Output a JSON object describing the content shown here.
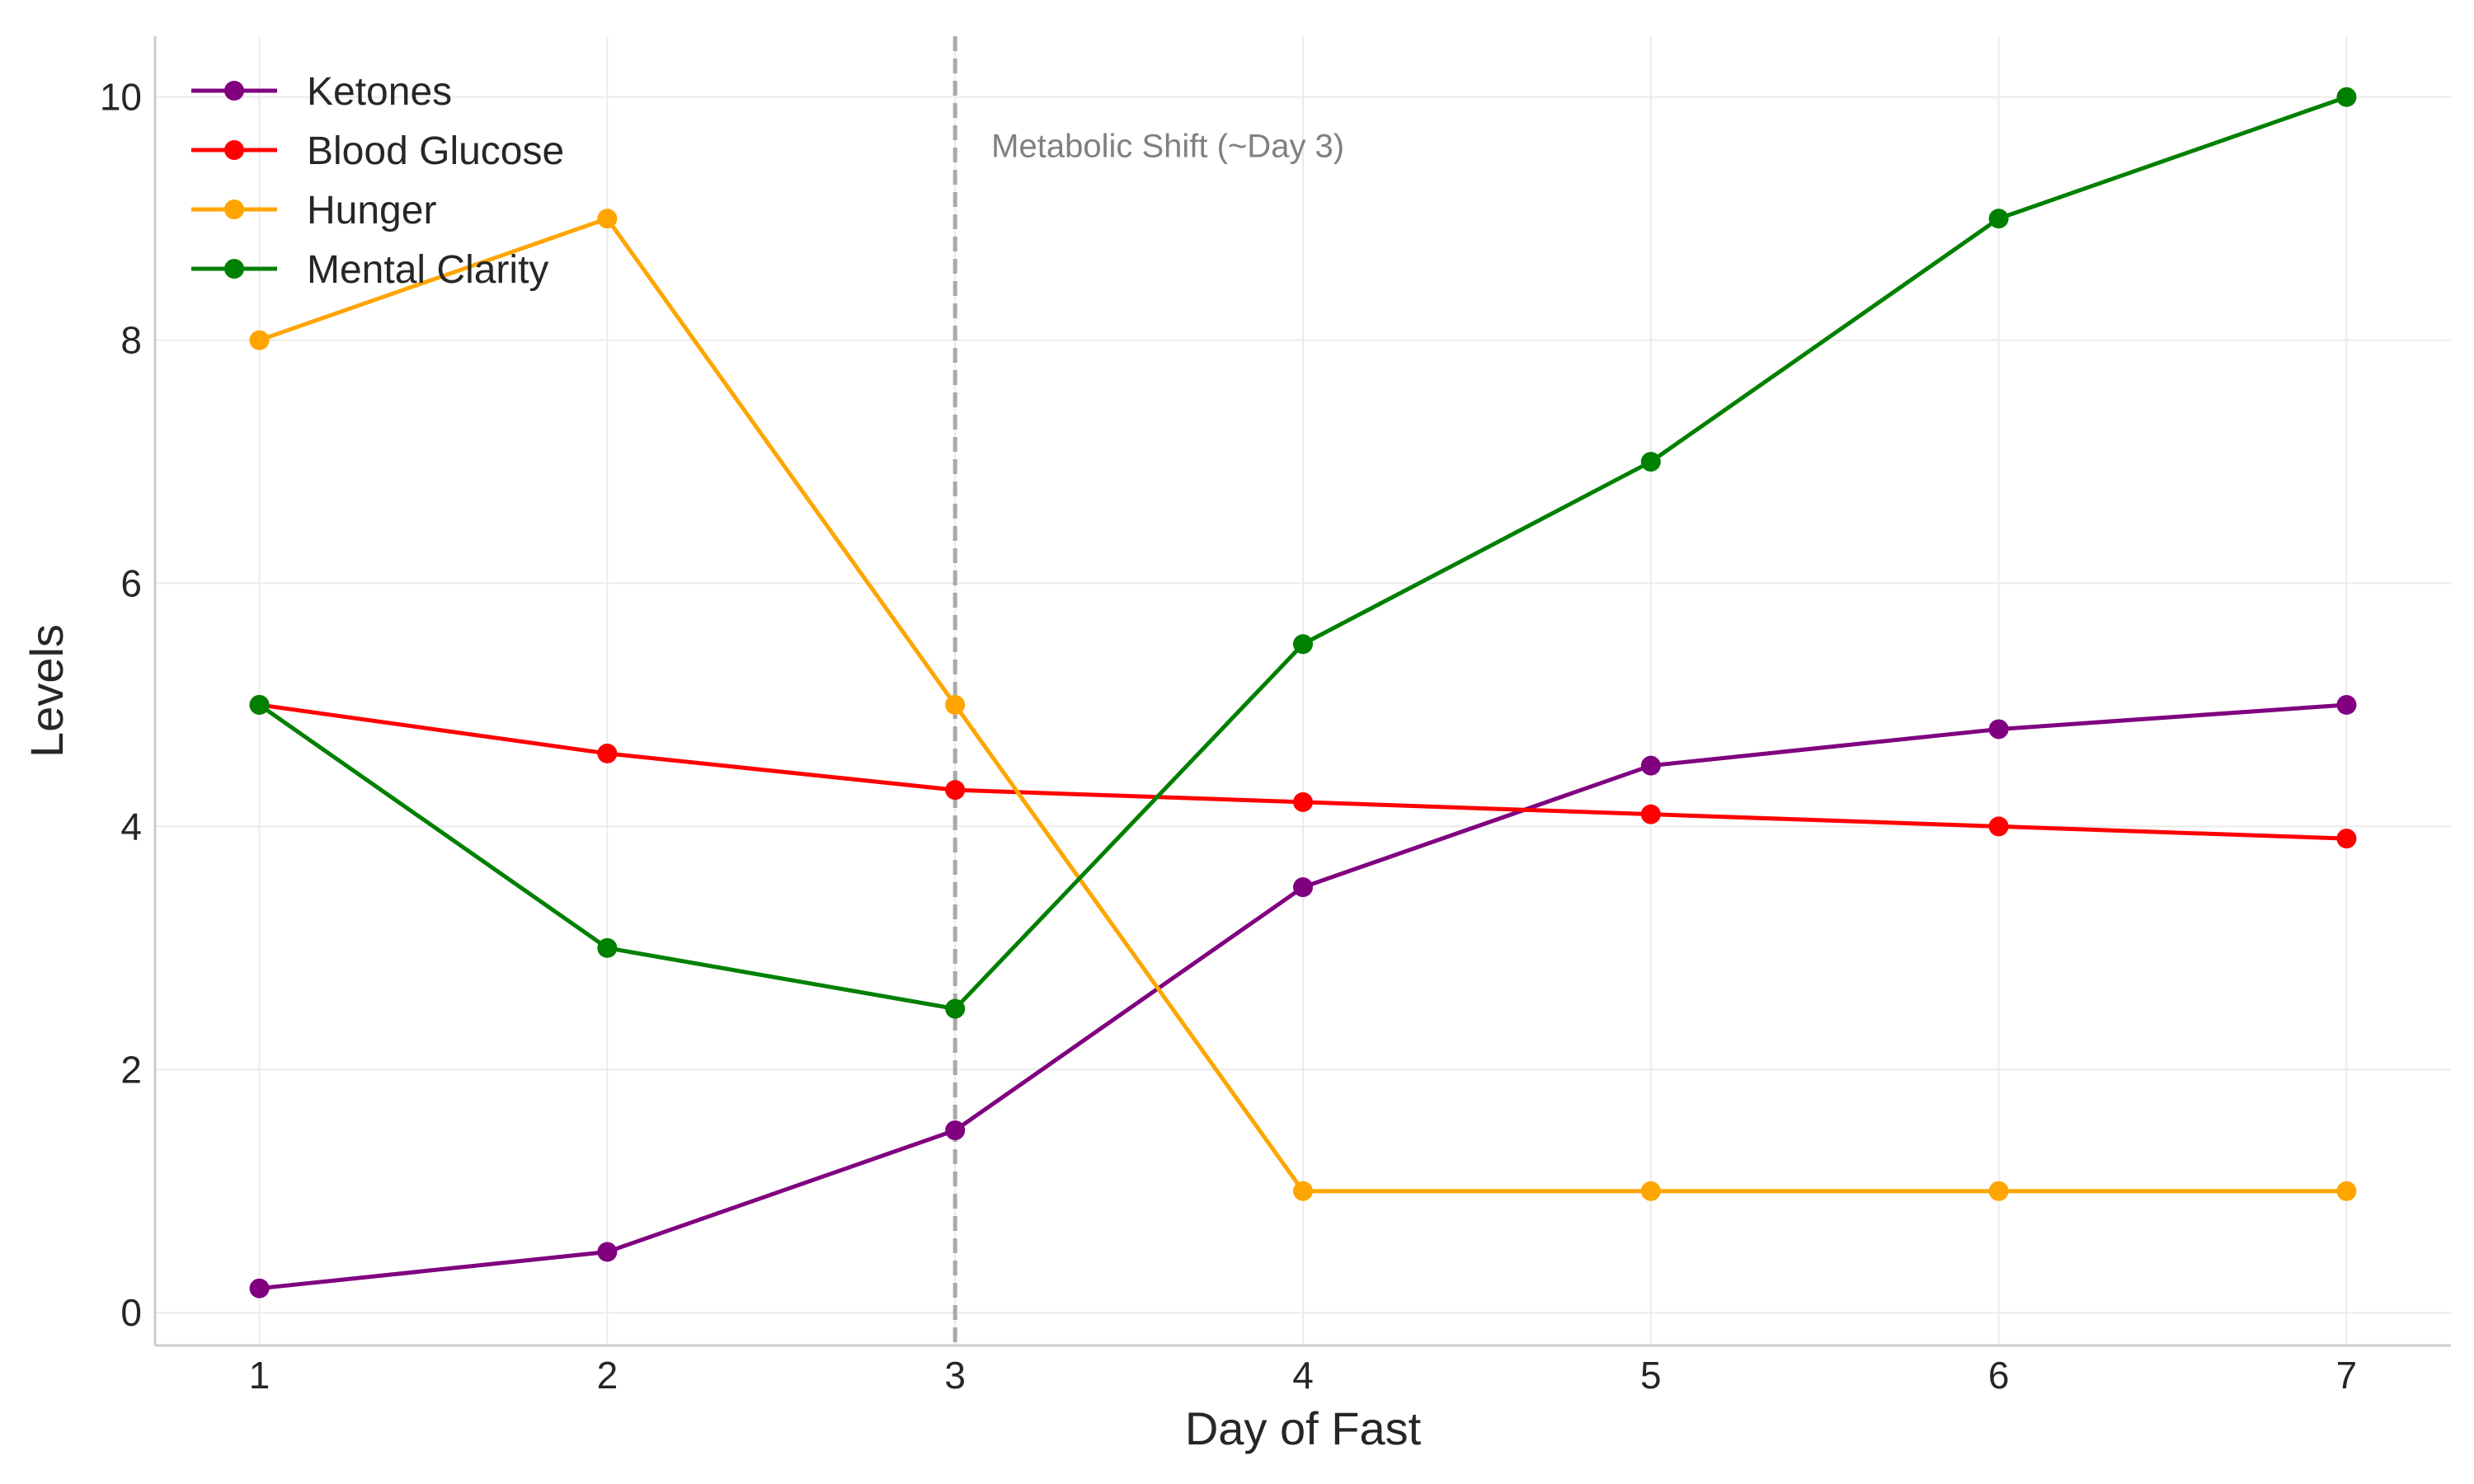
{
  "chart_data": {
    "type": "line",
    "title": "",
    "xlabel": "Day of Fast",
    "ylabel": "Levels",
    "x": [
      1,
      2,
      3,
      4,
      5,
      6,
      7
    ],
    "xticks": [
      "1",
      "2",
      "3",
      "4",
      "5",
      "6",
      "7"
    ],
    "yticks": [
      "0",
      "2",
      "4",
      "6",
      "8",
      "10"
    ],
    "xlim": [
      0.7,
      7.3
    ],
    "ylim": [
      -0.27,
      10.5
    ],
    "grid": true,
    "legend_position": "top-left",
    "series": [
      {
        "name": "Ketones",
        "color": "#800080",
        "values": [
          0.2,
          0.5,
          1.5,
          3.5,
          4.5,
          4.8,
          5.0
        ]
      },
      {
        "name": "Blood Glucose",
        "color": "#ff0000",
        "values": [
          5.0,
          4.6,
          4.3,
          4.2,
          4.1,
          4.0,
          3.9
        ]
      },
      {
        "name": "Hunger",
        "color": "#ffa500",
        "values": [
          8,
          9,
          5,
          1,
          1,
          1,
          1
        ]
      },
      {
        "name": "Mental Clarity",
        "color": "#008000",
        "values": [
          5,
          3,
          2.5,
          5.5,
          7,
          9,
          10
        ]
      }
    ],
    "annotations": [
      {
        "type": "vline",
        "x": 3,
        "color": "#a9a9a9",
        "style": "dashed",
        "text": "Metabolic Shift (~Day 3)"
      }
    ]
  }
}
